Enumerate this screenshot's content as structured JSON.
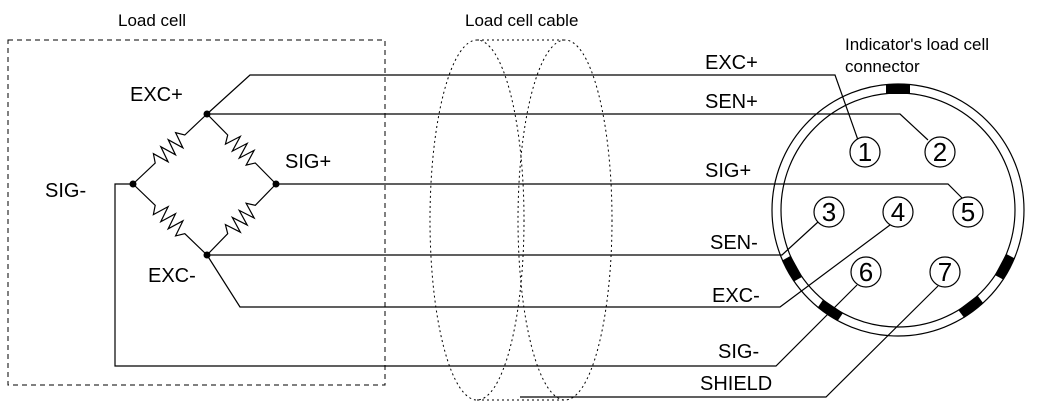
{
  "labels": {
    "load_cell": "Load cell",
    "cable": "Load cell cable",
    "connector_line1": "Indicator's load cell",
    "connector_line2": "connector"
  },
  "bridge": {
    "exc_plus": "EXC+",
    "sig_plus": "SIG+",
    "sig_minus": "SIG-",
    "exc_minus": "EXC-"
  },
  "wires": [
    "EXC+",
    "SEN+",
    "SIG+",
    "SEN-",
    "EXC-",
    "SIG-",
    "SHIELD"
  ],
  "pins": [
    "1",
    "2",
    "3",
    "4",
    "5",
    "6",
    "7"
  ]
}
